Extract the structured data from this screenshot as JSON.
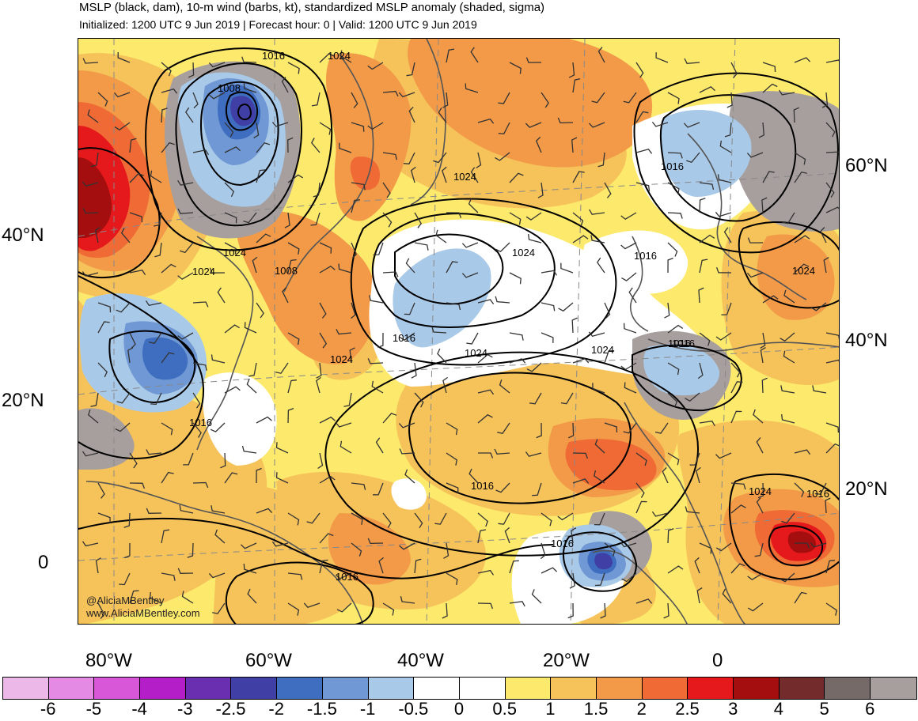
{
  "header": {
    "title": "MSLP (black, dam), 10-m wind (barbs, kt), standardized MSLP anomaly (shaded, sigma)",
    "subtitle": "Initialized: 1200 UTC 9 Jun 2019 | Forecast hour: 0 | Valid: 1200 UTC 9 Jun 2019"
  },
  "map": {
    "credit_handle": "@AliciaMBentley",
    "credit_site": "www.AliciaMBentley.com",
    "lat_labels_left": [
      "40°N",
      "20°N",
      "0"
    ],
    "lat_labels_right": [
      "60°N",
      "40°N",
      "20°N"
    ],
    "lon_labels": [
      "80°W",
      "60°W",
      "40°W",
      "20°W",
      "0"
    ],
    "isobar_labels": [
      "1016",
      "1024",
      "1008",
      "1024",
      "1024",
      "1008",
      "1024",
      "1016",
      "1024",
      "1016",
      "1016",
      "1024",
      "1024",
      "1016",
      "1024",
      "1016",
      "1016",
      "1016",
      "1024",
      "1016",
      "1024",
      "1016",
      "1016"
    ],
    "colors": {
      "land_outline": "#555555",
      "isobar": "#000000",
      "grid": "#888888"
    }
  },
  "colorbar": {
    "labels": [
      "-6",
      "-5",
      "-4",
      "-3",
      "-2.5",
      "-2",
      "-1.5",
      "-1",
      "-0.5",
      "0",
      "0.5",
      "1",
      "1.5",
      "2",
      "2.5",
      "3",
      "4",
      "5",
      "6"
    ],
    "colors": [
      "#ebb8e8",
      "#e58ae4",
      "#d757d8",
      "#b31ec8",
      "#6a2fb0",
      "#3f3fa5",
      "#3f6ec0",
      "#6f98d4",
      "#a9c9e8",
      "#ffffff",
      "#ffffff",
      "#fde96b",
      "#f6c25a",
      "#f29a48",
      "#ef6a34",
      "#e5191c",
      "#a50e0e",
      "#732b2b",
      "#756a67",
      "#a79f9d"
    ]
  }
}
